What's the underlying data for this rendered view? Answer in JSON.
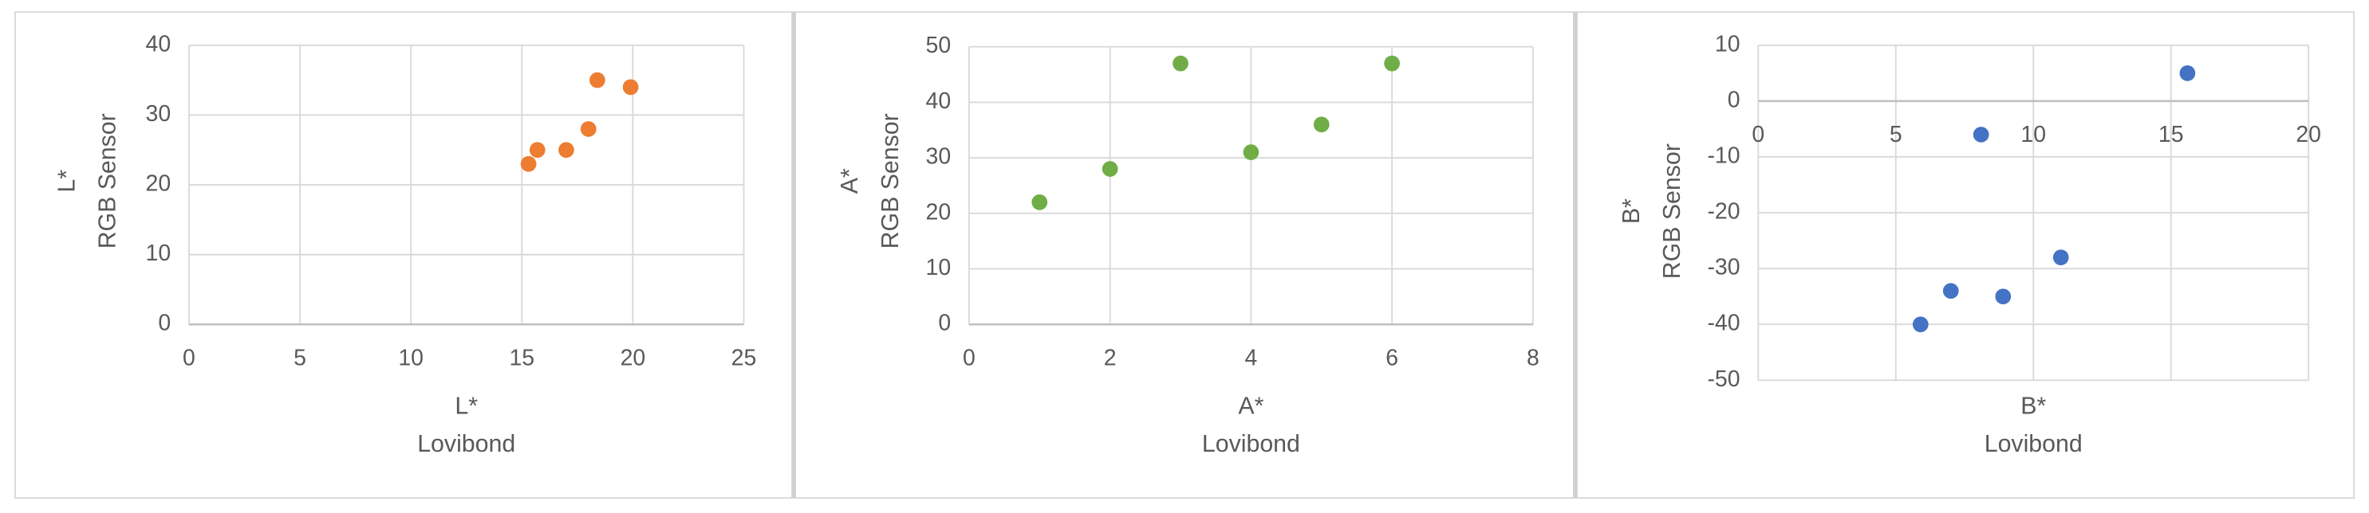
{
  "chart_data": [
    {
      "type": "scatter",
      "x_label": [
        "L*",
        "Lovibond"
      ],
      "y_label": [
        "L*",
        "RGB Sensor"
      ],
      "x": [
        15.3,
        15.7,
        17.0,
        18.0,
        18.4,
        19.9
      ],
      "values": [
        23,
        25,
        25,
        28,
        35,
        34
      ],
      "color": "#ed7d31",
      "xlim": [
        0,
        25
      ],
      "xticks": [
        0,
        5,
        10,
        15,
        20,
        25
      ],
      "ylim": [
        0,
        40
      ],
      "yticks": [
        0,
        10,
        20,
        30,
        40
      ],
      "grid": true
    },
    {
      "type": "scatter",
      "x_label": [
        "A*",
        "Lovibond"
      ],
      "y_label": [
        "A*",
        "RGB Sensor"
      ],
      "x": [
        1,
        2,
        3,
        4,
        5,
        6
      ],
      "values": [
        22,
        28,
        47,
        31,
        36,
        47
      ],
      "color": "#70ad47",
      "xlim": [
        0,
        8
      ],
      "xticks": [
        0,
        2,
        4,
        6,
        8
      ],
      "ylim": [
        0,
        50
      ],
      "yticks": [
        0,
        10,
        20,
        30,
        40,
        50
      ],
      "grid": true
    },
    {
      "type": "scatter",
      "x_label": [
        "B*",
        "Lovibond"
      ],
      "y_label": [
        "B*",
        "RGB Sensor"
      ],
      "x": [
        15.6,
        8.1,
        11.0,
        8.9,
        7.0,
        5.9
      ],
      "values": [
        5,
        -6,
        -28,
        -35,
        -34,
        -40
      ],
      "color": "#4472c4",
      "xlim": [
        0,
        20
      ],
      "xticks": [
        0,
        5,
        10,
        15,
        20
      ],
      "ylim": [
        -50,
        10
      ],
      "yticks": [
        -50,
        -40,
        -30,
        -20,
        -10,
        0,
        10
      ],
      "grid": true
    }
  ]
}
